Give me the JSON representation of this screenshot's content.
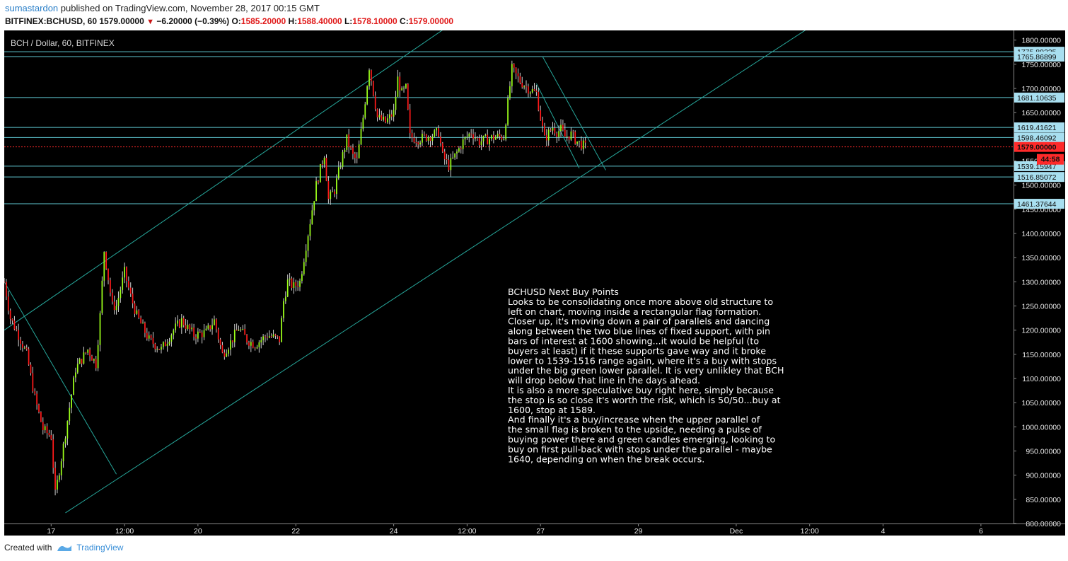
{
  "header": {
    "author": "sumastardon",
    "published": "published on TradingView.com, November 28, 2017 00:15 GMT",
    "symbol": "BITFINEX:BCHUSD, 60",
    "last": "1579.00000",
    "change": "−6.20000 (−0.39%)",
    "o_label": "O:",
    "o_value": "1585.20000",
    "h_label": "H:",
    "h_value": "1588.40000",
    "l_label": "L:",
    "l_value": "1578.10000",
    "c_label": "C:",
    "c_value": "1579.00000"
  },
  "footer": {
    "created_with": "Created with",
    "brand": "TradingView"
  },
  "colors": {
    "background": "#000000",
    "bull": "#9cff1a",
    "bear": "#ff1a1a",
    "channel": "#26a69a",
    "hline": "#5fc8d2",
    "price_line": "#ff2a2a",
    "tag": "#a8dff0"
  },
  "chart_data": {
    "type": "candlestick",
    "title": "BCH / Dollar, 60, BITFINEX",
    "ylim": [
      800,
      1820
    ],
    "y_ticks": [
      "1800.00000",
      "1750.00000",
      "1700.00000",
      "1650.00000",
      "1600.00000",
      "1550.00000",
      "1500.00000",
      "1450.00000",
      "1400.00000",
      "1350.00000",
      "1300.00000",
      "1250.00000",
      "1200.00000",
      "1150.00000",
      "1100.00000",
      "1050.00000",
      "1000.00000",
      "950.00000",
      "900.00000",
      "850.00000",
      "800.00000"
    ],
    "x_ticks": [
      "17",
      "12:00",
      "20",
      "22",
      "24",
      "12:00",
      "27",
      "29",
      "Dec",
      "12:00",
      "4",
      "6"
    ],
    "x_tick_hours": [
      24,
      60,
      96,
      144,
      192,
      228,
      264,
      312,
      360,
      396,
      432,
      480
    ],
    "x_range_hours": [
      1,
      496
    ],
    "horizontal_levels": [
      1775.89225,
      1765.86899,
      1681.10635,
      1619.41621,
      1598.46092,
      1539.15947,
      1516.85072,
      1461.37644
    ],
    "level_labels": [
      "1775.89225",
      "1765.86899",
      "1681.10635",
      "1619.41621",
      "1598.46092",
      "1539.15947",
      "1516.85072",
      "1461.37644"
    ],
    "current_price": 1579.0,
    "current_price_label": "1579.00000",
    "countdown": "44:58",
    "trend_lines": [
      {
        "from": [
          1,
          1200
        ],
        "to": [
          233,
          1870
        ]
      },
      {
        "from": [
          31,
          822
        ],
        "to": [
          401,
          1840
        ]
      },
      {
        "from": [
          1,
          1300
        ],
        "to": [
          56,
          902
        ]
      },
      {
        "from": [
          265,
          1766
        ],
        "to": [
          296,
          1531
        ]
      },
      {
        "from": [
          262,
          1710
        ],
        "to": [
          283,
          1535
        ]
      }
    ],
    "price_path_hours": [
      1,
      4,
      8,
      12,
      16,
      20,
      24,
      26,
      30,
      36,
      42,
      46,
      48,
      50,
      54,
      56,
      60,
      63,
      66,
      72,
      78,
      84,
      88,
      94,
      100,
      104,
      108,
      112,
      116,
      120,
      124,
      130,
      136,
      138,
      140,
      143,
      146,
      150,
      154,
      158,
      160,
      163,
      166,
      169,
      172,
      174,
      177,
      180,
      184,
      188,
      192,
      194,
      196,
      198,
      200,
      204,
      208,
      212,
      214,
      216,
      219,
      222,
      226,
      230,
      234,
      238,
      242,
      246,
      250,
      254,
      258,
      262,
      264,
      266,
      270,
      272,
      274,
      276,
      279,
      282,
      286
    ],
    "price_path_values": [
      1300,
      1225,
      1190,
      1150,
      1060,
      995,
      980,
      860,
      960,
      1120,
      1160,
      1130,
      1230,
      1365,
      1250,
      1250,
      1320,
      1270,
      1230,
      1180,
      1160,
      1200,
      1220,
      1190,
      1195,
      1220,
      1150,
      1175,
      1205,
      1180,
      1170,
      1190,
      1180,
      1260,
      1300,
      1290,
      1300,
      1400,
      1500,
      1565,
      1470,
      1490,
      1545,
      1595,
      1560,
      1550,
      1640,
      1745,
      1640,
      1630,
      1650,
      1720,
      1690,
      1700,
      1600,
      1595,
      1600,
      1605,
      1610,
      1560,
      1540,
      1560,
      1590,
      1610,
      1590,
      1595,
      1600,
      1600,
      1740,
      1715,
      1700,
      1690,
      1640,
      1595,
      1620,
      1610,
      1615,
      1600,
      1605,
      1590,
      1579
    ],
    "annotation": {
      "title": "BCHUSD  Next Buy Points",
      "lines": [
        "Looks to be consolidating once more above old structure to",
        "left on chart, moving inside a rectangular flag formation.",
        "Closer up, it's moving down a pair of parallels and dancing",
        "along between the two blue lines of fixed support, with pin",
        "bars of interest at 1600 showing...it would be helpful (to",
        "buyers at least) if it these supports gave way and it broke",
        "lower to 1539-1516 range again, where it's a buy with stops",
        "under the big green lower parallel. It is very unlikley that BCH",
        "will drop below that line in the days ahead.",
        "It is also a more speculative buy right here, simply because",
        "the stop is so close it's worth the risk, which is 50/50...buy at",
        "1600, stop at 1589.",
        "And finally it's a buy/increase when the upper parallel of",
        "the small flag is broken to the upside, needing a pulse of",
        "buying power there and green candles emerging, looking to",
        "buy on first pull-back with stops under the parallel - maybe",
        "1640, depending on when the break occurs."
      ]
    }
  }
}
